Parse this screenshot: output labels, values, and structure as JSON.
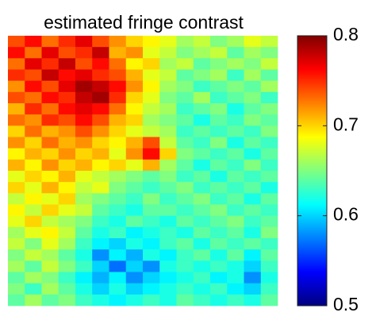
{
  "chart_data": {
    "type": "heatmap",
    "title": "estimated fringe contrast",
    "colormap": "jet",
    "clim": [
      0.5,
      0.8
    ],
    "cticks": [
      0.5,
      0.6,
      0.7,
      0.8
    ],
    "values": [
      [
        0.74,
        0.76,
        0.73,
        0.75,
        0.77,
        0.74,
        0.72,
        0.7,
        0.69,
        0.68,
        0.66,
        0.67,
        0.65,
        0.66,
        0.68,
        0.67
      ],
      [
        0.76,
        0.73,
        0.77,
        0.74,
        0.75,
        0.78,
        0.71,
        0.72,
        0.68,
        0.67,
        0.65,
        0.66,
        0.67,
        0.64,
        0.66,
        0.65
      ],
      [
        0.73,
        0.77,
        0.75,
        0.78,
        0.74,
        0.76,
        0.73,
        0.69,
        0.7,
        0.66,
        0.67,
        0.64,
        0.65,
        0.66,
        0.65,
        0.67
      ],
      [
        0.75,
        0.74,
        0.78,
        0.76,
        0.77,
        0.75,
        0.74,
        0.71,
        0.68,
        0.67,
        0.64,
        0.65,
        0.66,
        0.63,
        0.66,
        0.64
      ],
      [
        0.72,
        0.76,
        0.74,
        0.77,
        0.79,
        0.78,
        0.76,
        0.72,
        0.69,
        0.66,
        0.65,
        0.63,
        0.64,
        0.65,
        0.64,
        0.66
      ],
      [
        0.74,
        0.73,
        0.76,
        0.75,
        0.78,
        0.79,
        0.75,
        0.7,
        0.68,
        0.65,
        0.64,
        0.66,
        0.63,
        0.64,
        0.65,
        0.63
      ],
      [
        0.71,
        0.75,
        0.73,
        0.76,
        0.77,
        0.76,
        0.73,
        0.69,
        0.67,
        0.66,
        0.63,
        0.64,
        0.65,
        0.62,
        0.64,
        0.65
      ],
      [
        0.73,
        0.72,
        0.75,
        0.74,
        0.76,
        0.74,
        0.71,
        0.7,
        0.66,
        0.65,
        0.64,
        0.62,
        0.64,
        0.63,
        0.65,
        0.64
      ],
      [
        0.7,
        0.73,
        0.71,
        0.72,
        0.74,
        0.72,
        0.7,
        0.68,
        0.67,
        0.66,
        0.63,
        0.64,
        0.63,
        0.64,
        0.63,
        0.65
      ],
      [
        0.72,
        0.7,
        0.73,
        0.71,
        0.72,
        0.7,
        0.69,
        0.71,
        0.74,
        0.67,
        0.64,
        0.63,
        0.65,
        0.62,
        0.64,
        0.63
      ],
      [
        0.69,
        0.71,
        0.7,
        0.72,
        0.7,
        0.71,
        0.68,
        0.72,
        0.76,
        0.7,
        0.65,
        0.64,
        0.63,
        0.64,
        0.62,
        0.64
      ],
      [
        0.71,
        0.69,
        0.72,
        0.7,
        0.71,
        0.69,
        0.7,
        0.68,
        0.71,
        0.66,
        0.64,
        0.62,
        0.64,
        0.63,
        0.65,
        0.63
      ],
      [
        0.68,
        0.7,
        0.69,
        0.71,
        0.68,
        0.67,
        0.66,
        0.65,
        0.64,
        0.65,
        0.63,
        0.64,
        0.62,
        0.64,
        0.63,
        0.64
      ],
      [
        0.7,
        0.68,
        0.71,
        0.69,
        0.67,
        0.68,
        0.65,
        0.64,
        0.63,
        0.64,
        0.65,
        0.63,
        0.64,
        0.63,
        0.64,
        0.62
      ],
      [
        0.67,
        0.69,
        0.68,
        0.7,
        0.66,
        0.65,
        0.64,
        0.63,
        0.65,
        0.63,
        0.64,
        0.65,
        0.63,
        0.64,
        0.62,
        0.64
      ],
      [
        0.69,
        0.67,
        0.7,
        0.68,
        0.67,
        0.64,
        0.63,
        0.62,
        0.64,
        0.64,
        0.63,
        0.64,
        0.65,
        0.63,
        0.64,
        0.63
      ],
      [
        0.68,
        0.7,
        0.67,
        0.66,
        0.65,
        0.63,
        0.62,
        0.64,
        0.63,
        0.62,
        0.64,
        0.63,
        0.64,
        0.65,
        0.63,
        0.64
      ],
      [
        0.66,
        0.68,
        0.69,
        0.67,
        0.64,
        0.62,
        0.63,
        0.61,
        0.62,
        0.63,
        0.62,
        0.64,
        0.63,
        0.64,
        0.62,
        0.65
      ],
      [
        0.67,
        0.65,
        0.68,
        0.66,
        0.63,
        0.61,
        0.6,
        0.62,
        0.61,
        0.63,
        0.64,
        0.62,
        0.64,
        0.63,
        0.64,
        0.63
      ],
      [
        0.65,
        0.67,
        0.66,
        0.64,
        0.62,
        0.58,
        0.61,
        0.59,
        0.62,
        0.61,
        0.63,
        0.64,
        0.62,
        0.64,
        0.61,
        0.64
      ],
      [
        0.66,
        0.64,
        0.67,
        0.65,
        0.63,
        0.6,
        0.57,
        0.6,
        0.58,
        0.62,
        0.63,
        0.62,
        0.63,
        0.62,
        0.6,
        0.63
      ],
      [
        0.64,
        0.66,
        0.65,
        0.63,
        0.61,
        0.59,
        0.61,
        0.58,
        0.6,
        0.61,
        0.62,
        0.63,
        0.61,
        0.62,
        0.58,
        0.62
      ],
      [
        0.65,
        0.63,
        0.66,
        0.64,
        0.62,
        0.6,
        0.62,
        0.6,
        0.61,
        0.62,
        0.63,
        0.62,
        0.63,
        0.61,
        0.6,
        0.63
      ],
      [
        0.64,
        0.66,
        0.64,
        0.65,
        0.63,
        0.62,
        0.61,
        0.62,
        0.63,
        0.62,
        0.64,
        0.63,
        0.62,
        0.63,
        0.62,
        0.64
      ]
    ]
  }
}
